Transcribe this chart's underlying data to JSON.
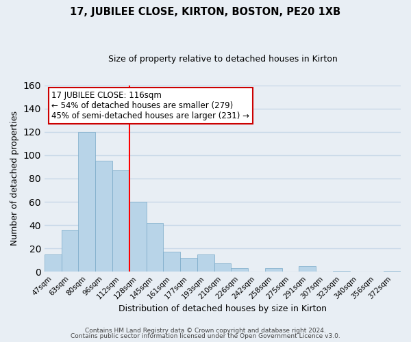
{
  "title": "17, JUBILEE CLOSE, KIRTON, BOSTON, PE20 1XB",
  "subtitle": "Size of property relative to detached houses in Kirton",
  "xlabel": "Distribution of detached houses by size in Kirton",
  "ylabel": "Number of detached properties",
  "categories": [
    "47sqm",
    "63sqm",
    "80sqm",
    "96sqm",
    "112sqm",
    "128sqm",
    "145sqm",
    "161sqm",
    "177sqm",
    "193sqm",
    "210sqm",
    "226sqm",
    "242sqm",
    "258sqm",
    "275sqm",
    "291sqm",
    "307sqm",
    "323sqm",
    "340sqm",
    "356sqm",
    "372sqm"
  ],
  "values": [
    15,
    36,
    120,
    95,
    87,
    60,
    42,
    17,
    12,
    15,
    7,
    3,
    0,
    3,
    0,
    5,
    0,
    1,
    0,
    0,
    1
  ],
  "bar_color": "#b8d4e8",
  "bar_edgecolor": "#7aaac8",
  "vline_x_index": 4.5,
  "vline_color": "red",
  "annotation_title": "17 JUBILEE CLOSE: 116sqm",
  "annotation_line1": "← 54% of detached houses are smaller (279)",
  "annotation_line2": "45% of semi-detached houses are larger (231) →",
  "annotation_box_color": "white",
  "annotation_box_edgecolor": "#cc0000",
  "ylim": [
    0,
    160
  ],
  "yticks": [
    0,
    20,
    40,
    60,
    80,
    100,
    120,
    140,
    160
  ],
  "footer1": "Contains HM Land Registry data © Crown copyright and database right 2024.",
  "footer2": "Contains public sector information licensed under the Open Government Licence v3.0.",
  "background_color": "#e8eef4",
  "grid_color": "#c8d8e8"
}
